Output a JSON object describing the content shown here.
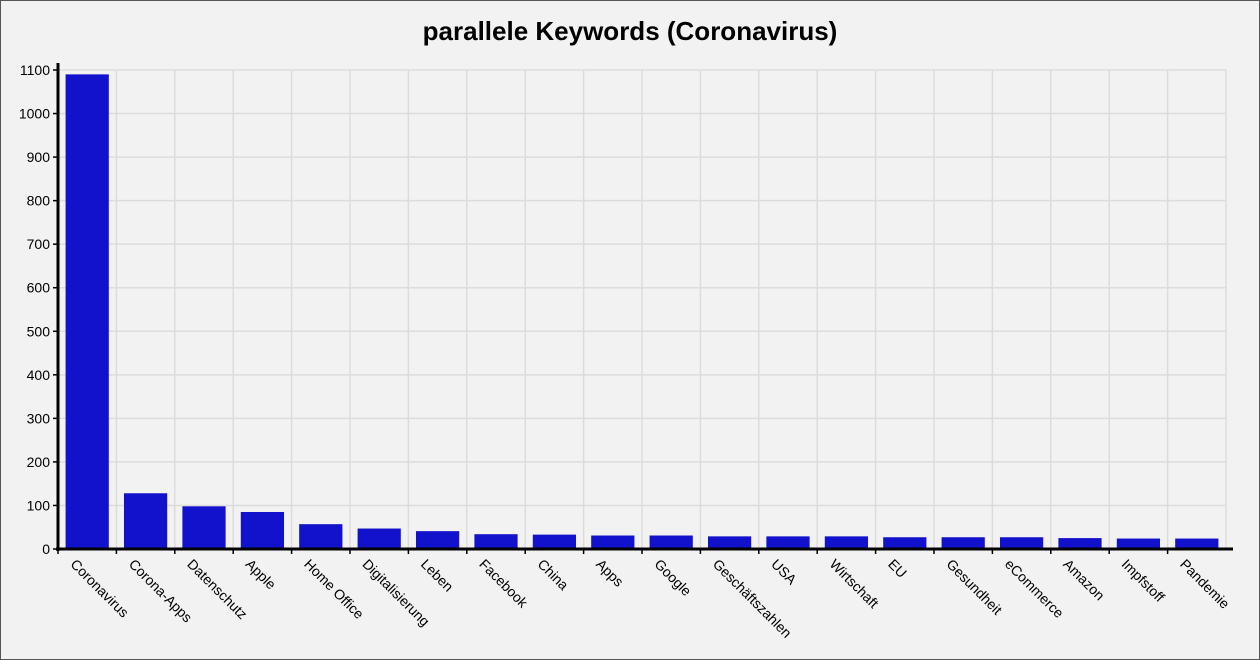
{
  "chart_data": {
    "type": "bar",
    "title": "parallele Keywords (Coronavirus)",
    "xlabel": "",
    "ylabel": "",
    "ylim": [
      0,
      1100
    ],
    "yticks": [
      0,
      100,
      200,
      300,
      400,
      500,
      600,
      700,
      800,
      900,
      1000,
      1100
    ],
    "grid": true,
    "bar_color": "#1212cc",
    "categories": [
      "Coronavirus",
      "Corona-Apps",
      "Datenschutz",
      "Apple",
      "Home Office",
      "Digitalisierung",
      "Leben",
      "Facebook",
      "China",
      "Apps",
      "Google",
      "Geschäftszahlen",
      "USA",
      "Wirtschaft",
      "EU",
      "Gesundheit",
      "eCommerce",
      "Amazon",
      "Impfstoff",
      "Pandemie"
    ],
    "values": [
      1090,
      128,
      98,
      85,
      57,
      47,
      41,
      34,
      33,
      31,
      31,
      29,
      29,
      29,
      27,
      27,
      27,
      25,
      24,
      24
    ]
  }
}
